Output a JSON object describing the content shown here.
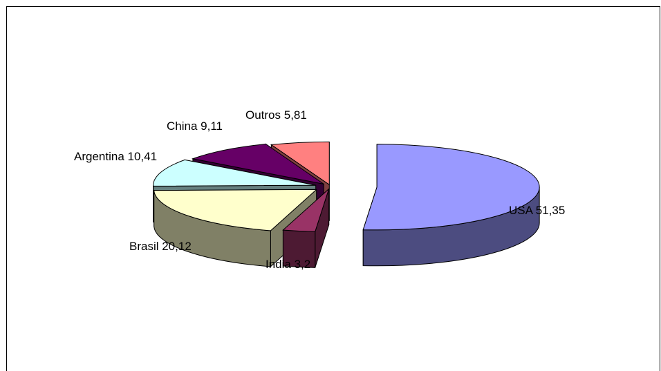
{
  "chart_data": {
    "type": "pie",
    "title": "",
    "labels": [
      "USA",
      "India",
      "Brasil",
      "Argentina",
      "China",
      "Outros"
    ],
    "values": [
      51.35,
      3.2,
      20.12,
      10.41,
      9.11,
      5.81
    ],
    "data_labels": [
      "USA 51,35",
      "India 3,2",
      "Brasil 20,12",
      "Argentina 10,41",
      "China 9,11",
      "Outros 5,81"
    ],
    "legend": "none",
    "style": "3d-exploded",
    "colors": {
      "USA": {
        "top": "#9999FF",
        "side": "#4C4C80"
      },
      "India": {
        "top": "#993366",
        "side": "#4D1A33"
      },
      "Brasil": {
        "top": "#FFFFCC",
        "side": "#808066"
      },
      "Argentina": {
        "top": "#CCFFFF",
        "side": "#668080"
      },
      "China": {
        "top": "#660066",
        "side": "#330033"
      },
      "Outros": {
        "top": "#FF8080",
        "side": "#804040"
      }
    }
  }
}
